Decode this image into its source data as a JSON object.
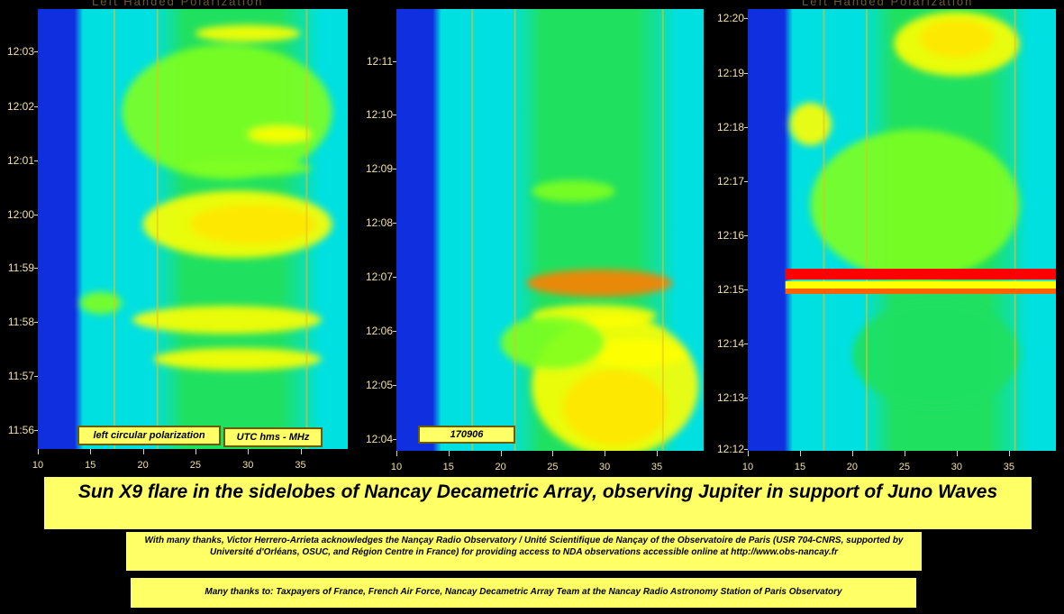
{
  "chart_data": [
    {
      "type": "heatmap",
      "panel_title": "Left Handed Polarization",
      "xlim": [
        10,
        39.5
      ],
      "x_ticks": [
        "10",
        "15",
        "20",
        "25",
        "30",
        "35"
      ],
      "y_ticks": [
        "12:03",
        "12:02",
        "12:01",
        "12:00",
        "11:59",
        "11:58",
        "11:57",
        "11:56"
      ],
      "y_range": [
        "11:55:40",
        "12:03:30"
      ],
      "labels": [
        "left circular polarization",
        "UTC hms - MHz"
      ],
      "colormap": [
        "#1030e0",
        "#00e0e0",
        "#20e060",
        "#80ff20",
        "#ffff00",
        "#ff8000",
        "#ff0000"
      ],
      "blobs": [
        {
          "x": 30.5,
          "t": 4.0,
          "rx": 6,
          "ry": 0.35,
          "level": 6
        },
        {
          "x": 29,
          "t": 4.0,
          "rx": 9,
          "ry": 0.6,
          "level": 4
        },
        {
          "x": 28,
          "t": 6.0,
          "rx": 10,
          "ry": 1.2,
          "level": 3
        },
        {
          "x": 29,
          "t": 1.6,
          "rx": 8,
          "ry": 0.2,
          "level": 4
        },
        {
          "x": 28,
          "t": 2.3,
          "rx": 9,
          "ry": 0.25,
          "level": 4
        },
        {
          "x": 30,
          "t": 7.4,
          "rx": 5,
          "ry": 0.15,
          "level": 4
        },
        {
          "x": 33,
          "t": 5.6,
          "rx": 3,
          "ry": 0.15,
          "level": 4
        },
        {
          "x": 16,
          "t": 2.6,
          "rx": 2,
          "ry": 0.2,
          "level": 3
        },
        {
          "x": 30,
          "t": 5.0,
          "rx": 6,
          "ry": 0.15,
          "level": 3
        }
      ]
    },
    {
      "type": "heatmap",
      "panel_title": "",
      "xlim": [
        10,
        39.5
      ],
      "x_ticks": [
        "10",
        "15",
        "20",
        "25",
        "30",
        "35"
      ],
      "y_ticks": [
        "12:11",
        "12:10",
        "12:09",
        "12:08",
        "12:07",
        "12:06",
        "12:05",
        "12:04"
      ],
      "y_range": [
        "12:03:45",
        "12:11:55"
      ],
      "labels": [
        "170906"
      ],
      "colormap": [
        "#1030e0",
        "#00e0e0",
        "#20e060",
        "#80ff20",
        "#ffff00",
        "#ff8000",
        "#ff0000"
      ],
      "blobs": [
        {
          "x": 31,
          "t": 0.8,
          "rx": 5,
          "ry": 0.7,
          "level": 6
        },
        {
          "x": 31,
          "t": 1.2,
          "rx": 8,
          "ry": 1.3,
          "level": 4
        },
        {
          "x": 29.5,
          "t": 3.1,
          "rx": 7,
          "ry": 0.25,
          "level": 5
        },
        {
          "x": 29,
          "t": 2.5,
          "rx": 6,
          "ry": 0.2,
          "level": 4
        },
        {
          "x": 33,
          "t": 1.8,
          "rx": 5,
          "ry": 0.25,
          "level": 4
        },
        {
          "x": 27,
          "t": 4.8,
          "rx": 4,
          "ry": 0.2,
          "level": 3
        },
        {
          "x": 25,
          "t": 2.0,
          "rx": 5,
          "ry": 0.5,
          "level": 3
        }
      ]
    },
    {
      "type": "heatmap",
      "panel_title": "Left Handed Polarization",
      "xlim": [
        10,
        39.5
      ],
      "x_ticks": [
        "10",
        "15",
        "20",
        "25",
        "30",
        "35"
      ],
      "y_ticks": [
        "12:20",
        "12:19",
        "12:18",
        "12:17",
        "12:16",
        "12:15",
        "12:14",
        "12:13",
        "12:12"
      ],
      "y_range": [
        "12:11:50",
        "12:20:05"
      ],
      "labels": [],
      "colormap": [
        "#1030e0",
        "#00e0e0",
        "#20e060",
        "#80ff20",
        "#ffff00",
        "#ff8000",
        "#ff0000"
      ],
      "blobs": [
        {
          "x": 30,
          "t": 7.7,
          "rx": 3.5,
          "ry": 0.35,
          "level": 6
        },
        {
          "x": 30,
          "t": 7.6,
          "rx": 6,
          "ry": 0.6,
          "level": 4
        },
        {
          "x": 16,
          "t": 6.1,
          "rx": 2,
          "ry": 0.4,
          "level": 4
        },
        {
          "x": 26,
          "t": 4.6,
          "rx": 10,
          "ry": 1.4,
          "level": 3
        },
        {
          "x": 28,
          "t": 1.8,
          "rx": 8,
          "ry": 1.0,
          "level": 2
        }
      ]
    }
  ],
  "title": "Sun X9 flare in the sidelobes of Nancay Decametric Array, observing Jupiter in support of Juno Waves",
  "acknowledgement": "With many thanks, Victor Herrero-Arrieta acknowledges the Nançay Radio Observatory / Unité Scientifique de Nançay of the Observatoire de Paris (USR 704-CNRS, supported by Université d'Orléans, OSUC, and Région Centre in France) for providing access to NDA observations accessible online at http://www.obs-nancay.fr",
  "thanks": "Many thanks to: Taxpayers of France, French Air Force, Nancay Decametric Array Team at the Nancay Radio Astronomy Station of Paris Observatory"
}
